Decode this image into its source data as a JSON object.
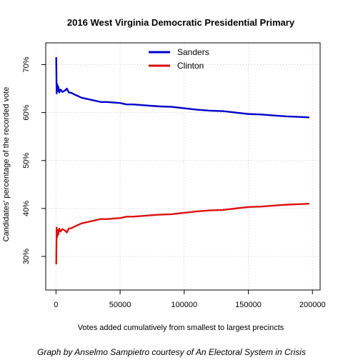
{
  "chart_data": {
    "type": "line",
    "title": "2016 West Virginia Democratic Presidential Primary",
    "xlabel": "Votes added cumulatively from smallest to largest precincts",
    "ylabel": "Candidates' percentage of the recorded vote",
    "xlim": [
      -8000,
      206000
    ],
    "ylim": [
      0.23,
      0.7454
    ],
    "x_ticks": [
      0,
      50000,
      100000,
      150000,
      200000
    ],
    "x_tick_labels": [
      "0",
      "50000",
      "100000",
      "150000",
      "200000"
    ],
    "y_ticks": [
      0.3,
      0.4,
      0.5,
      0.6,
      0.7
    ],
    "y_tick_labels": [
      "30%",
      "40%",
      "50%",
      "60%",
      "70%"
    ],
    "grid": true,
    "legend_position": "top-center",
    "series": [
      {
        "name": "Sanders",
        "color": "#0000cc",
        "points": [
          [
            200,
            0.714
          ],
          [
            500,
            0.64
          ],
          [
            800,
            0.66
          ],
          [
            1200,
            0.645
          ],
          [
            1700,
            0.655
          ],
          [
            2500,
            0.642
          ],
          [
            3500,
            0.648
          ],
          [
            5000,
            0.643
          ],
          [
            7000,
            0.646
          ],
          [
            8500,
            0.65
          ],
          [
            10000,
            0.642
          ],
          [
            12000,
            0.641
          ],
          [
            15000,
            0.637
          ],
          [
            20000,
            0.631
          ],
          [
            25000,
            0.628
          ],
          [
            30000,
            0.625
          ],
          [
            35000,
            0.622
          ],
          [
            40000,
            0.622
          ],
          [
            45000,
            0.621
          ],
          [
            50000,
            0.62
          ],
          [
            55000,
            0.617
          ],
          [
            60000,
            0.617
          ],
          [
            70000,
            0.615
          ],
          [
            80000,
            0.613
          ],
          [
            90000,
            0.612
          ],
          [
            100000,
            0.609
          ],
          [
            110000,
            0.606
          ],
          [
            120000,
            0.604
          ],
          [
            130000,
            0.603
          ],
          [
            140000,
            0.6
          ],
          [
            150000,
            0.597
          ],
          [
            160000,
            0.596
          ],
          [
            170000,
            0.594
          ],
          [
            180000,
            0.592
          ],
          [
            190000,
            0.591
          ],
          [
            197000,
            0.59
          ]
        ]
      },
      {
        "name": "Clinton",
        "color": "#dd1111",
        "points": [
          [
            200,
            0.285
          ],
          [
            500,
            0.36
          ],
          [
            800,
            0.34
          ],
          [
            1200,
            0.355
          ],
          [
            1700,
            0.345
          ],
          [
            2500,
            0.358
          ],
          [
            3500,
            0.352
          ],
          [
            5000,
            0.357
          ],
          [
            7000,
            0.354
          ],
          [
            8500,
            0.35
          ],
          [
            10000,
            0.358
          ],
          [
            12000,
            0.359
          ],
          [
            15000,
            0.363
          ],
          [
            20000,
            0.369
          ],
          [
            25000,
            0.372
          ],
          [
            30000,
            0.375
          ],
          [
            35000,
            0.378
          ],
          [
            40000,
            0.378
          ],
          [
            45000,
            0.379
          ],
          [
            50000,
            0.38
          ],
          [
            55000,
            0.383
          ],
          [
            60000,
            0.383
          ],
          [
            70000,
            0.385
          ],
          [
            80000,
            0.387
          ],
          [
            90000,
            0.388
          ],
          [
            100000,
            0.391
          ],
          [
            110000,
            0.394
          ],
          [
            120000,
            0.396
          ],
          [
            130000,
            0.397
          ],
          [
            140000,
            0.4
          ],
          [
            150000,
            0.403
          ],
          [
            160000,
            0.404
          ],
          [
            170000,
            0.406
          ],
          [
            180000,
            0.408
          ],
          [
            190000,
            0.409
          ],
          [
            197000,
            0.41
          ]
        ]
      }
    ]
  },
  "caption": "Graph by Anselmo Sampietro courtesy of An Electoral System in Crisis"
}
